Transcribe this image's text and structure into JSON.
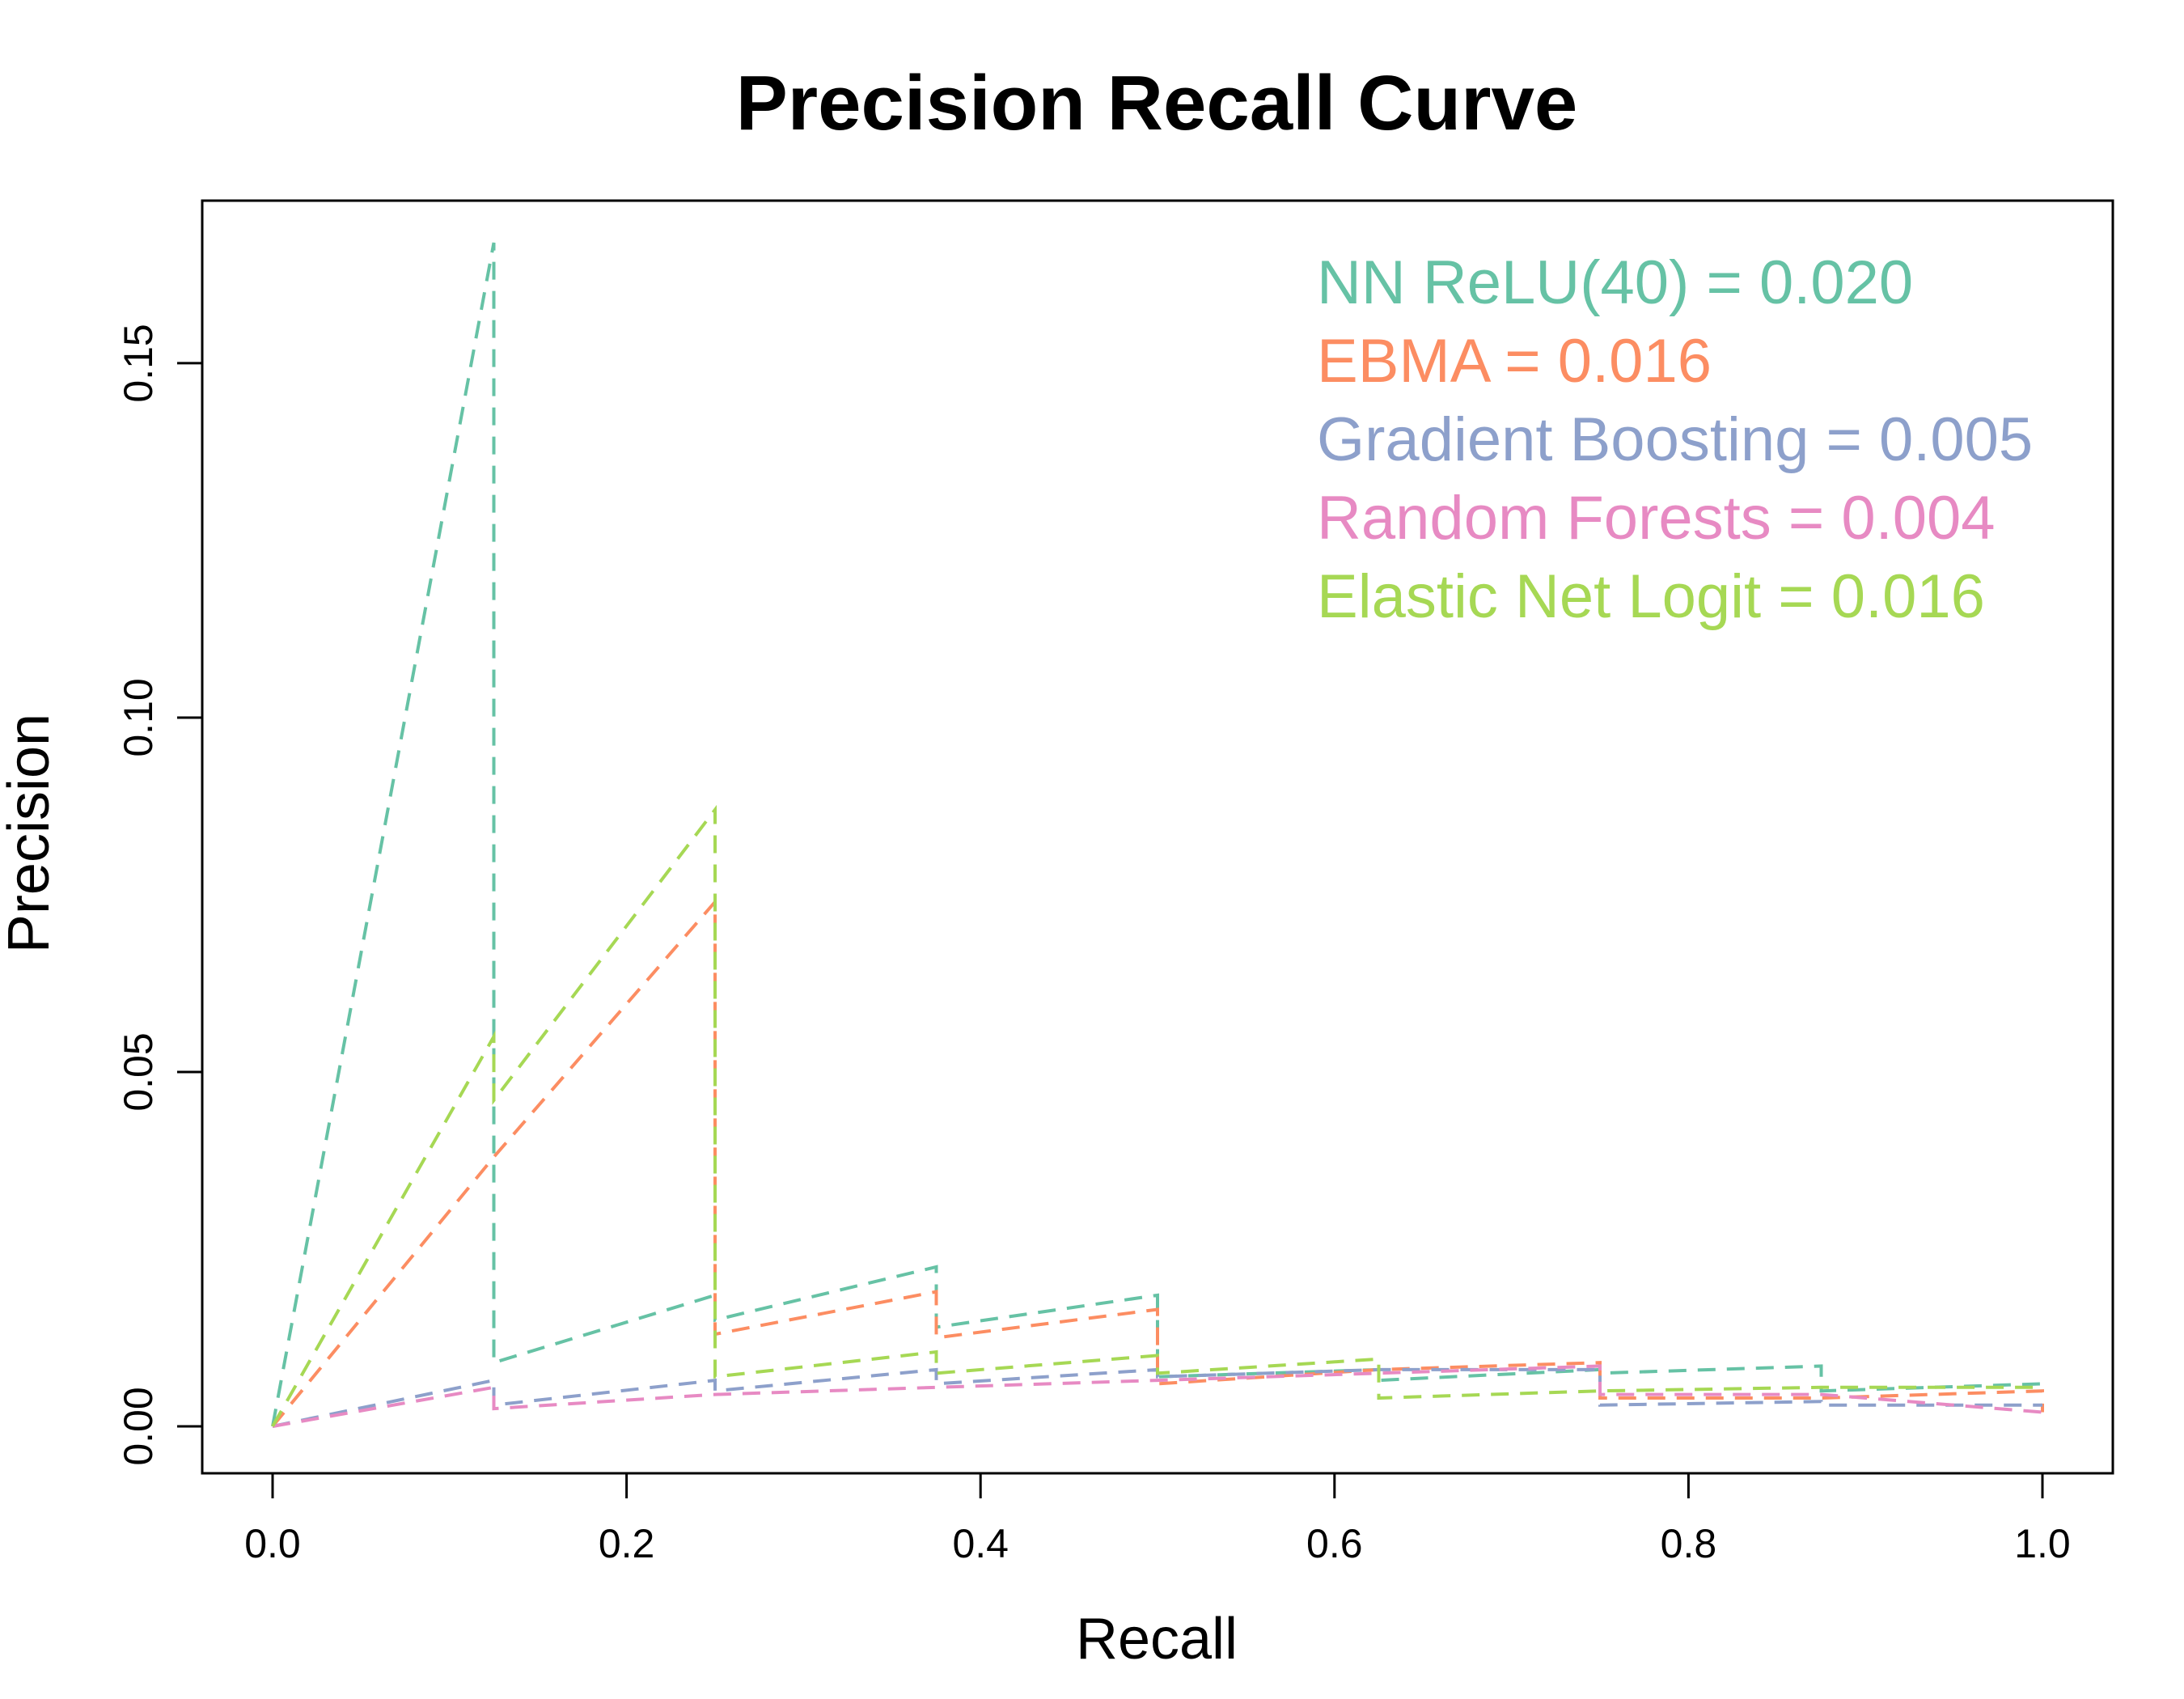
{
  "chart_data": {
    "type": "line",
    "title": "Precision Recall Curve",
    "xlabel": "Recall",
    "ylabel": "Precision",
    "xlim": [
      0.0,
      1.0
    ],
    "ylim": [
      0.0,
      0.167
    ],
    "x_ticks": [
      "0.0",
      "0.2",
      "0.4",
      "0.6",
      "0.8",
      "1.0"
    ],
    "y_ticks": [
      "0.00",
      "0.05",
      "0.10",
      "0.15"
    ],
    "grid": false,
    "legend_position": "top-right",
    "line_style": "dashed",
    "series": [
      {
        "name": "NN ReLU(40) = 0.020",
        "color": "#66c2a5",
        "points": [
          [
            0.0,
            0.0
          ],
          [
            0.125,
            0.167
          ],
          [
            0.125,
            0.009
          ],
          [
            0.25,
            0.0185
          ],
          [
            0.25,
            0.015
          ],
          [
            0.375,
            0.0225
          ],
          [
            0.375,
            0.014
          ],
          [
            0.5,
            0.0185
          ],
          [
            0.5,
            0.007
          ],
          [
            0.625,
            0.008
          ],
          [
            0.625,
            0.0065
          ],
          [
            0.75,
            0.008
          ],
          [
            0.75,
            0.0075
          ],
          [
            0.875,
            0.0085
          ],
          [
            0.875,
            0.005
          ],
          [
            1.0,
            0.006
          ]
        ]
      },
      {
        "name": "EBMA = 0.016",
        "color": "#fc8d62",
        "points": [
          [
            0.0,
            0.0
          ],
          [
            0.125,
            0.038
          ],
          [
            0.25,
            0.074
          ],
          [
            0.25,
            0.013
          ],
          [
            0.375,
            0.019
          ],
          [
            0.375,
            0.0125
          ],
          [
            0.5,
            0.0165
          ],
          [
            0.5,
            0.006
          ],
          [
            0.625,
            0.008
          ],
          [
            0.75,
            0.009
          ],
          [
            0.75,
            0.004
          ],
          [
            0.875,
            0.004
          ],
          [
            1.0,
            0.005
          ],
          [
            1.0,
            0.002
          ]
        ]
      },
      {
        "name": "Gradient Boosting = 0.005",
        "color": "#8da0cb",
        "points": [
          [
            0.0,
            0.0
          ],
          [
            0.125,
            0.0065
          ],
          [
            0.125,
            0.003
          ],
          [
            0.25,
            0.0065
          ],
          [
            0.25,
            0.005
          ],
          [
            0.375,
            0.008
          ],
          [
            0.375,
            0.006
          ],
          [
            0.5,
            0.008
          ],
          [
            0.5,
            0.007
          ],
          [
            0.625,
            0.008
          ],
          [
            0.75,
            0.008
          ],
          [
            0.75,
            0.003
          ],
          [
            0.875,
            0.0035
          ],
          [
            0.875,
            0.003
          ],
          [
            1.0,
            0.003
          ]
        ]
      },
      {
        "name": "Random Forests = 0.004",
        "color": "#e78ac3",
        "points": [
          [
            0.0,
            0.0
          ],
          [
            0.125,
            0.0055
          ],
          [
            0.125,
            0.0025
          ],
          [
            0.25,
            0.0045
          ],
          [
            0.375,
            0.0055
          ],
          [
            0.5,
            0.0065
          ],
          [
            0.625,
            0.0075
          ],
          [
            0.75,
            0.0085
          ],
          [
            0.75,
            0.0045
          ],
          [
            0.875,
            0.0045
          ],
          [
            1.0,
            0.002
          ]
        ]
      },
      {
        "name": "Elastic Net Logit = 0.016",
        "color": "#a6d854",
        "points": [
          [
            0.0,
            0.0
          ],
          [
            0.125,
            0.055
          ],
          [
            0.125,
            0.046
          ],
          [
            0.25,
            0.087
          ],
          [
            0.25,
            0.007
          ],
          [
            0.375,
            0.0105
          ],
          [
            0.375,
            0.0075
          ],
          [
            0.5,
            0.01
          ],
          [
            0.5,
            0.0075
          ],
          [
            0.625,
            0.0095
          ],
          [
            0.625,
            0.004
          ],
          [
            0.75,
            0.005
          ],
          [
            0.875,
            0.0055
          ],
          [
            1.0,
            0.0055
          ]
        ]
      }
    ]
  }
}
